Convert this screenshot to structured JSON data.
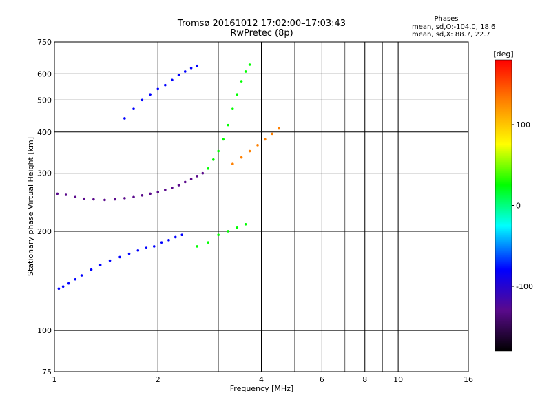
{
  "chart_data": {
    "type": "scatter",
    "title": "Tromsø 20161012 17:02:00–17:03:43",
    "subtitle": "RwPretec (8p)",
    "xlabel": "Frequency [MHz]",
    "ylabel": "Stationary phase Virtual Height [km]",
    "x_scale": "log2",
    "y_scale": "log",
    "xlim": [
      1,
      16
    ],
    "ylim": [
      75,
      750
    ],
    "x_ticks": [
      1,
      2,
      4,
      6,
      8,
      10,
      16
    ],
    "x_tick_labels": [
      "1",
      "2",
      "4",
      "6",
      "8",
      "10",
      "16"
    ],
    "y_ticks": [
      75,
      100,
      200,
      300,
      400,
      500,
      600,
      750
    ],
    "y_tick_labels": [
      "75",
      "100",
      "200",
      "300",
      "400",
      "500",
      "600",
      "750"
    ],
    "grid": true,
    "minor_x_ticks": [
      3,
      5,
      7,
      9
    ],
    "phase_info": {
      "title": "Phases",
      "line1": "mean, sd,O:-104.0, 18.6",
      "line2": "mean, sd,X:  88.7, 22.7"
    },
    "colorbar": {
      "label": "[deg]",
      "range": [
        -180,
        180
      ],
      "tick_values": [
        100,
        0,
        -100
      ],
      "tick_labels": [
        "100",
        "0",
        "-100"
      ],
      "colormap": [
        "#000000",
        "#5a0a8c",
        "#0000ff",
        "#00ffff",
        "#00ff00",
        "#ffff00",
        "#ff8000",
        "#ff0000"
      ]
    },
    "series": [
      {
        "points": [
          [
            1.03,
            134
          ],
          [
            1.06,
            136
          ],
          [
            1.1,
            139
          ],
          [
            1.15,
            143
          ],
          [
            1.2,
            147
          ],
          [
            1.28,
            153
          ],
          [
            1.36,
            158
          ],
          [
            1.45,
            163
          ],
          [
            1.55,
            167
          ],
          [
            1.65,
            171
          ],
          [
            1.75,
            175
          ],
          [
            1.85,
            178
          ],
          [
            1.95,
            180
          ],
          [
            2.05,
            185
          ],
          [
            2.15,
            188
          ],
          [
            2.25,
            192
          ],
          [
            2.35,
            195
          ]
        ],
        "phase": -90
      },
      {
        "points": [
          [
            1.02,
            260
          ],
          [
            1.08,
            258
          ],
          [
            1.15,
            254
          ],
          [
            1.22,
            251
          ],
          [
            1.3,
            250
          ],
          [
            1.4,
            249
          ],
          [
            1.5,
            250
          ],
          [
            1.6,
            252
          ],
          [
            1.7,
            254
          ],
          [
            1.8,
            257
          ],
          [
            1.9,
            260
          ],
          [
            2.0,
            263
          ],
          [
            2.1,
            267
          ],
          [
            2.2,
            271
          ],
          [
            2.3,
            276
          ],
          [
            2.4,
            282
          ],
          [
            2.5,
            288
          ],
          [
            2.6,
            294
          ],
          [
            2.7,
            300
          ]
        ],
        "phase": -110
      },
      {
        "points": [
          [
            1.6,
            440
          ],
          [
            1.7,
            470
          ],
          [
            1.8,
            500
          ],
          [
            1.9,
            520
          ],
          [
            2.0,
            540
          ],
          [
            2.1,
            555
          ],
          [
            2.2,
            575
          ],
          [
            2.3,
            595
          ],
          [
            2.4,
            610
          ],
          [
            2.5,
            625
          ],
          [
            2.6,
            635
          ]
        ],
        "phase": -100
      },
      {
        "points": [
          [
            2.8,
            310
          ],
          [
            2.9,
            330
          ],
          [
            3.0,
            350
          ],
          [
            3.1,
            380
          ],
          [
            3.2,
            420
          ],
          [
            3.3,
            470
          ],
          [
            3.4,
            520
          ],
          [
            3.5,
            570
          ],
          [
            3.6,
            610
          ],
          [
            3.7,
            640
          ]
        ],
        "phase": 30
      },
      {
        "points": [
          [
            3.3,
            320
          ],
          [
            3.5,
            335
          ],
          [
            3.7,
            350
          ],
          [
            3.9,
            365
          ],
          [
            4.1,
            380
          ],
          [
            4.3,
            395
          ],
          [
            4.5,
            410
          ]
        ],
        "phase": 120
      },
      {
        "points": [
          [
            2.6,
            180
          ],
          [
            2.8,
            185
          ],
          [
            3.0,
            195
          ],
          [
            3.2,
            200
          ],
          [
            3.4,
            205
          ],
          [
            3.6,
            210
          ]
        ],
        "phase": 40
      }
    ]
  }
}
